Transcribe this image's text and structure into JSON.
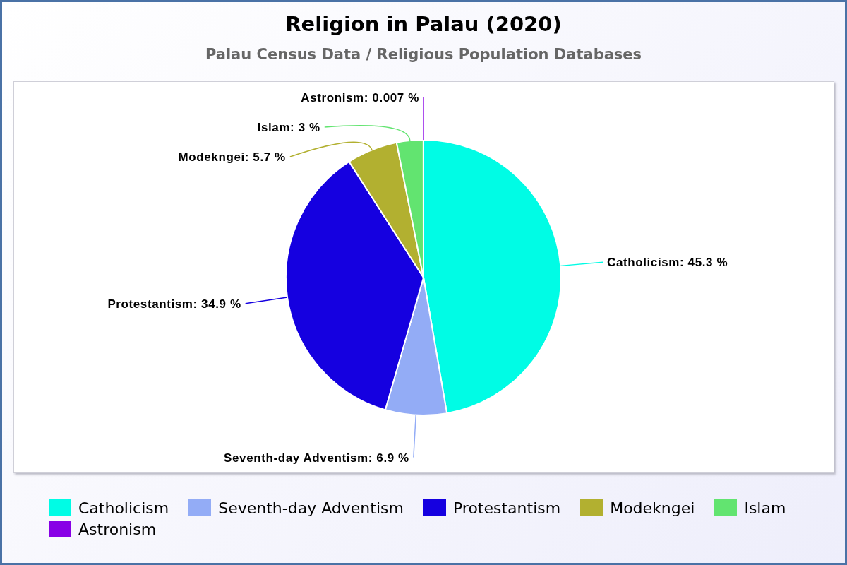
{
  "chart_data": {
    "type": "pie",
    "title": "Religion in Palau (2020)",
    "subtitle": "Palau Census Data / Religious Population Databases",
    "categories": [
      "Catholicism",
      "Seventh-day Adventism",
      "Protestantism",
      "Modekngei",
      "Islam",
      "Astronism"
    ],
    "values": [
      45.3,
      6.9,
      34.9,
      5.7,
      3,
      0.007
    ],
    "colors": [
      "#00fce5",
      "#93acf6",
      "#1500e0",
      "#b2b030",
      "#62e470",
      "#8800e6"
    ],
    "value_labels": [
      "Catholicism: 45.3 %",
      "Seventh-day Adventism: 6.9 %",
      "Protestantism: 34.9 %",
      "Modekngei: 5.7 %",
      "Islam: 3 %",
      "Astronism: 0.007 %"
    ],
    "legend": "bottom"
  }
}
